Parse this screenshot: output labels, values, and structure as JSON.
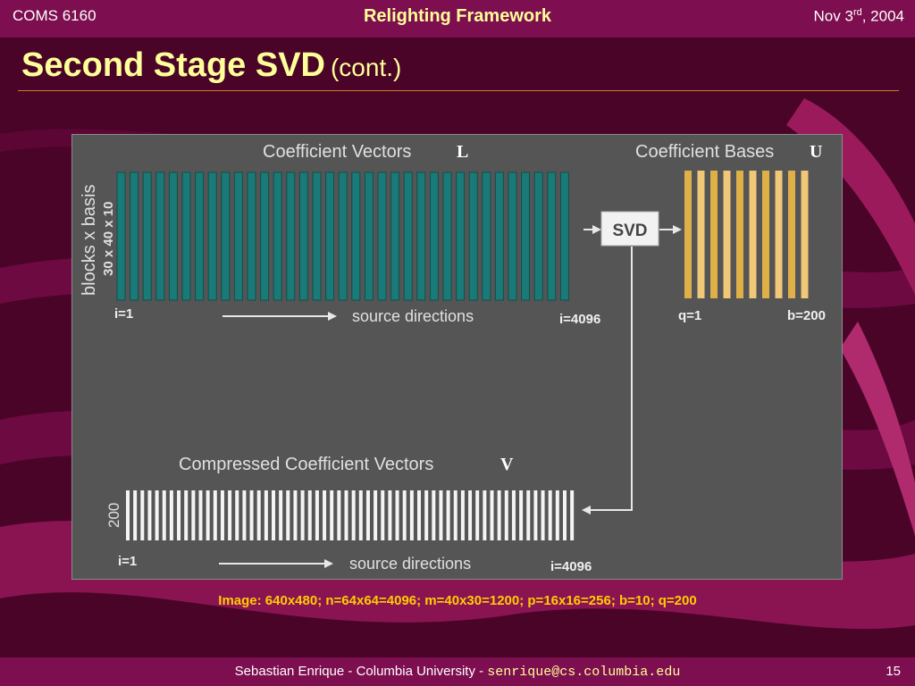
{
  "header": {
    "course": "COMS 6160",
    "center": "Relighting Framework",
    "date_prefix": "Nov 3",
    "date_sup": "rd",
    "date_suffix": ", 2004"
  },
  "title": {
    "main": "Second Stage SVD",
    "sub": "(cont.)"
  },
  "diagram": {
    "top_left": {
      "title": "Coefficient Vectors",
      "symbol": "L",
      "side_label": "blocks x basis",
      "side_dims": "30 x 40 x 10",
      "start": "i=1",
      "axis": "source directions",
      "end": "i=4096"
    },
    "svd_label": "SVD",
    "top_right": {
      "title": "Coefficient Bases",
      "symbol": "U",
      "start": "q=1",
      "end": "b=200"
    },
    "bottom": {
      "title": "Compressed Coefficient Vectors",
      "symbol": "V",
      "side_dims": "200",
      "start": "i=1",
      "axis": "source directions",
      "end": "i=4096"
    },
    "colors": {
      "teal": "#1a7a78",
      "teal_edge": "#0e4f4d",
      "gold": "#e0b048",
      "gold_light": "#f0c878",
      "white_bar": "#f4f4f4",
      "panel": "#555555"
    }
  },
  "caption": "Image: 640x480; n=64x64=4096; m=40x30=1200; p=16x16=256; b=10; q=200",
  "footer": {
    "text": "Sebastian Enrique - Columbia University - ",
    "email": "senrique@cs.columbia.edu",
    "page": "15"
  }
}
